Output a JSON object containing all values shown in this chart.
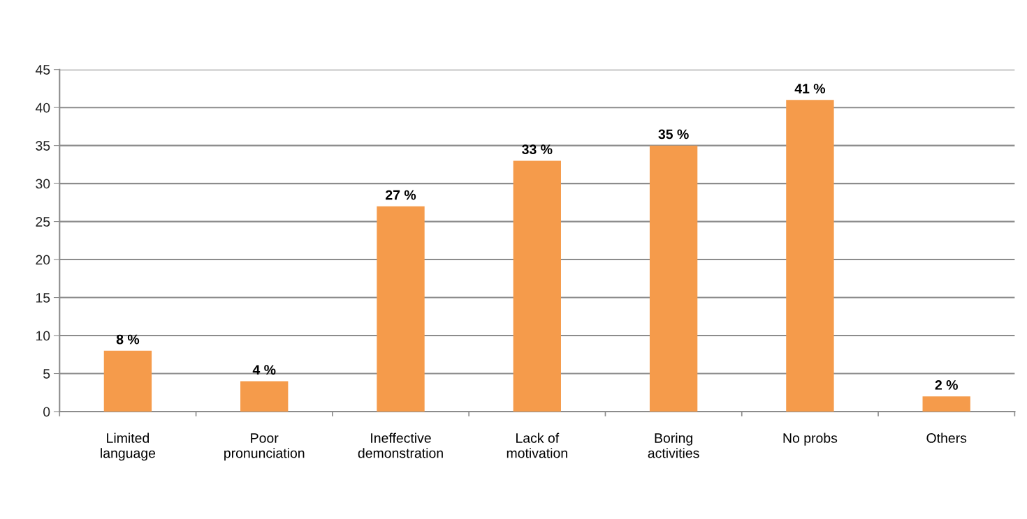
{
  "chart_data": {
    "type": "bar",
    "categories": [
      "Limited\nlanguage",
      "Poor\npronunciation",
      "Ineffective\ndemonstration",
      "Lack of\nmotivation",
      "Boring\nactivities",
      "No probs",
      "Others"
    ],
    "values": [
      8,
      4,
      27,
      33,
      35,
      41,
      2
    ],
    "value_labels": [
      "8 %",
      "4 %",
      "27 %",
      "33 %",
      "35 %",
      "41 %",
      "2 %"
    ],
    "color": "#f59b4b",
    "ylim": [
      0,
      45
    ],
    "yticks": [
      0,
      5,
      10,
      15,
      20,
      25,
      30,
      35,
      40,
      45
    ],
    "grid": "y",
    "legend": false
  }
}
